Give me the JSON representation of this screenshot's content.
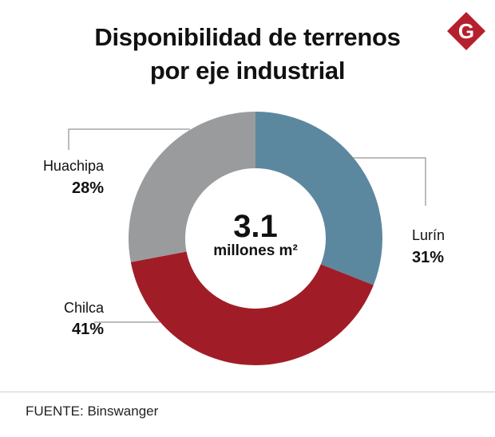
{
  "logo": {
    "letter": "G",
    "color": "#b51f2e"
  },
  "chart_data": {
    "type": "pie",
    "style": "donut",
    "title_lines": [
      "Disponibilidad de terrenos",
      "por eje industrial"
    ],
    "center_value": "3.1",
    "center_unit": "millones m²",
    "slices": [
      {
        "name": "Lurín",
        "value": 31,
        "label": "31%",
        "color": "#5c889f"
      },
      {
        "name": "Chilca",
        "value": 41,
        "label": "41%",
        "color": "#a01d27"
      },
      {
        "name": "Huachipa",
        "value": 28,
        "label": "28%",
        "color": "#9a9b9d"
      }
    ],
    "source": "FUENTE: Binswanger"
  }
}
